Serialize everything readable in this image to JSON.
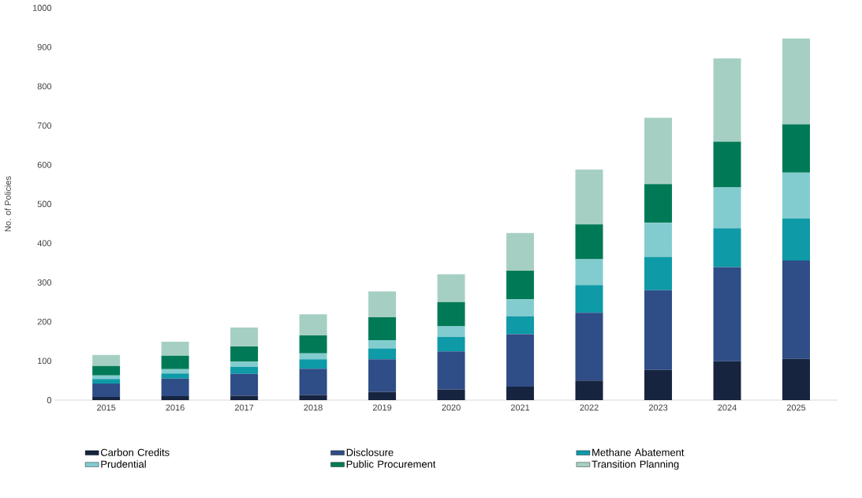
{
  "chart_data": {
    "type": "bar",
    "stacked": true,
    "ylabel": "No. of Policies",
    "categories": [
      "2015",
      "2016",
      "2017",
      "2018",
      "2019",
      "2020",
      "2021",
      "2022",
      "2023",
      "2024",
      "2025"
    ],
    "ylim": [
      0,
      1000
    ],
    "yticks": [
      0,
      100,
      200,
      300,
      400,
      500,
      600,
      700,
      800,
      900,
      1000
    ],
    "grid": false,
    "legend": "bottom",
    "series": [
      {
        "name": "Carbon Credits",
        "color": "#16243f",
        "values": [
          8,
          10,
          11,
          13,
          21,
          27,
          34,
          50,
          77,
          99,
          105
        ]
      },
      {
        "name": "Disclosure",
        "color": "#2f4d87",
        "values": [
          34,
          45,
          56,
          67,
          83,
          97,
          134,
          173,
          203,
          240,
          251
        ]
      },
      {
        "name": "Methane Abatement",
        "color": "#0e9aa7",
        "values": [
          12,
          13,
          18,
          24,
          28,
          37,
          46,
          70,
          85,
          99,
          107
        ]
      },
      {
        "name": "Prudential",
        "color": "#82ccd0",
        "values": [
          9,
          11,
          13,
          15,
          21,
          27,
          43,
          66,
          87,
          104,
          117
        ]
      },
      {
        "name": "Public Procurement",
        "color": "#007a56",
        "values": [
          24,
          34,
          39,
          46,
          58,
          62,
          73,
          89,
          99,
          117,
          123
        ]
      },
      {
        "name": "Transition Planning",
        "color": "#a6cfc4",
        "values": [
          28,
          36,
          48,
          54,
          66,
          71,
          96,
          140,
          169,
          212,
          219
        ]
      }
    ]
  }
}
